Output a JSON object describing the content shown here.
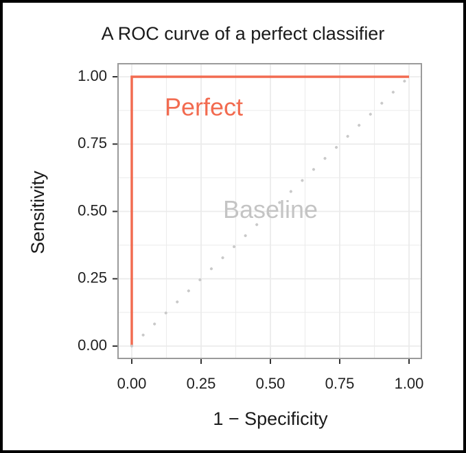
{
  "colors": {
    "perfect": "#F26B50",
    "baseline_line": "#C9C9C9",
    "baseline_label": "#C4C4C4",
    "grid": "#EBEBEB",
    "panel_border": "#9A9A9A",
    "frame": "#000000"
  },
  "chart_data": {
    "type": "line",
    "title": "A ROC curve of a perfect classifier",
    "xlabel": "1 − Specificity",
    "ylabel": "Sensitivity",
    "xlim": [
      0,
      1
    ],
    "ylim": [
      0,
      1
    ],
    "x_ticks": [
      0,
      0.25,
      0.5,
      0.75,
      1
    ],
    "x_tick_labels": [
      "0.00",
      "0.25",
      "0.50",
      "0.75",
      "1.00"
    ],
    "y_ticks": [
      0,
      0.25,
      0.5,
      0.75,
      1
    ],
    "y_tick_labels": [
      "0.00",
      "0.25",
      "0.50",
      "0.75",
      "1.00"
    ],
    "grid": true,
    "series": [
      {
        "name": "Perfect",
        "style": "solid",
        "x": [
          0,
          0,
          1
        ],
        "y": [
          0,
          1,
          1
        ]
      },
      {
        "name": "Baseline",
        "style": "dotted",
        "x": [
          0,
          1
        ],
        "y": [
          0,
          1
        ]
      }
    ],
    "annotations": [
      {
        "text": "Perfect",
        "x": 0.26,
        "y": 0.88,
        "color_key": "perfect"
      },
      {
        "text": "Baseline",
        "x": 0.5,
        "y": 0.5,
        "color_key": "baseline_label"
      }
    ]
  }
}
